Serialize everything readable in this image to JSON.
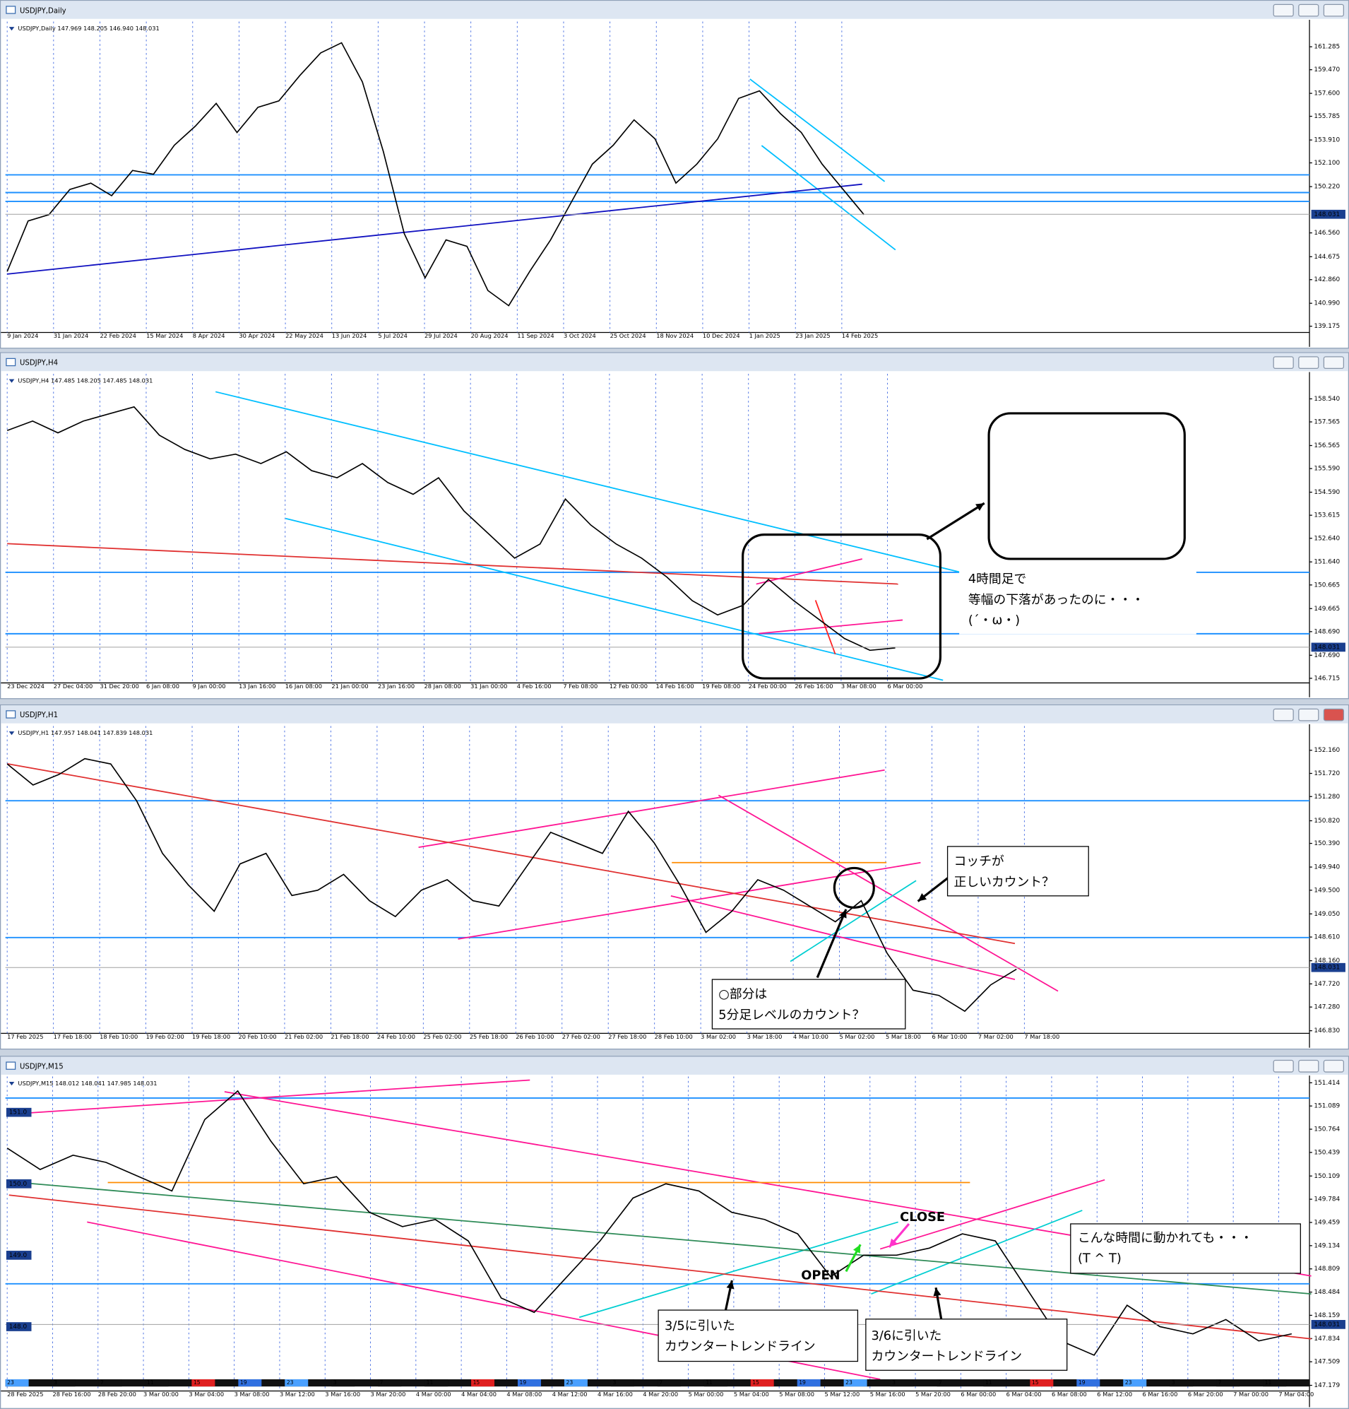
{
  "chart_data": [
    {
      "type": "line",
      "window_title": "USDJPY,Daily",
      "header": "USDJPY,Daily  147.969 148.205 146.940 148.031",
      "color": "#000000",
      "ylim": [
        138.68,
        163.28
      ],
      "yticks": [
        161.285,
        {
          "value": 159.47,
          "label": "159.470"
        },
        {
          "value": 157.6,
          "label": "157.600"
        },
        155.785,
        {
          "value": 153.91,
          "label": "153.910"
        },
        {
          "value": 152.1,
          "label": "152.100"
        },
        {
          "value": 150.22,
          "label": "150.220"
        },
        {
          "value": 146.56,
          "label": "146.560"
        },
        144.675,
        {
          "value": 142.86,
          "label": "142.860"
        },
        {
          "value": 140.99,
          "label": "140.990"
        },
        139.175
      ],
      "last_price": 148.031,
      "levels": [
        151.15,
        149.75,
        149.05
      ],
      "level_color": "#1e90ff",
      "date_labels": [
        "9 Jan 2024",
        "31 Jan 2024",
        "22 Feb 2024",
        "15 Mar 2024",
        "8 Apr 2024",
        "30 Apr 2024",
        "22 May 2024",
        "13 Jun 2024",
        "5 Jul 2024",
        "29 Jul 2024",
        "20 Aug 2024",
        "11 Sep 2024",
        "3 Oct 2024",
        "25 Oct 2024",
        "18 Nov 2024",
        "10 Dec 2024",
        "1 Jan 2025",
        "23 Jan 2025",
        "14 Feb 2025"
      ],
      "values": [
        143.5,
        147.5,
        148.0,
        150.0,
        150.5,
        149.5,
        151.5,
        151.2,
        153.5,
        155.0,
        156.8,
        154.5,
        156.5,
        157.0,
        159.0,
        160.8,
        161.6,
        158.5,
        153.0,
        146.5,
        143.0,
        146.0,
        145.5,
        142.0,
        140.8,
        143.5,
        146.0,
        149.0,
        152.0,
        153.5,
        155.5,
        154.0,
        150.5,
        152.0,
        154.0,
        157.2,
        157.8,
        156.0,
        154.5,
        152.0,
        150.0,
        148.0
      ],
      "annotations": []
    },
    {
      "type": "line",
      "window_title": "USDJPY,H4",
      "header": "USDJPY,H4  147.485 148.205 147.485 148.031",
      "color": "#000000",
      "ylim": [
        146.52,
        159.6
      ],
      "yticks": [
        {
          "value": 158.54,
          "label": "158.540"
        },
        157.565,
        156.565,
        {
          "value": 155.59,
          "label": "155.590"
        },
        {
          "value": 154.59,
          "label": "154.590"
        },
        153.615,
        {
          "value": 152.64,
          "label": "152.640"
        },
        {
          "value": 151.64,
          "label": "151.640"
        },
        150.665,
        149.665,
        {
          "value": 148.69,
          "label": "148.690"
        },
        {
          "value": 147.69,
          "label": "147.690"
        },
        146.715
      ],
      "last_price": 148.031,
      "levels": [
        151.2,
        148.6
      ],
      "level_color": "#1e90ff",
      "date_labels": [
        "23 Dec 2024",
        "27 Dec 04:00",
        "31 Dec 20:00",
        "6 Jan 08:00",
        "9 Jan 00:00",
        "13 Jan 16:00",
        "16 Jan 08:00",
        "21 Jan 00:00",
        "23 Jan 16:00",
        "28 Jan 08:00",
        "31 Jan 00:00",
        "4 Feb 16:00",
        "7 Feb 08:00",
        "12 Feb 00:00",
        "14 Feb 16:00",
        "19 Feb 08:00",
        "24 Feb 00:00",
        "26 Feb 16:00",
        "3 Mar 08:00",
        "6 Mar 00:00"
      ],
      "values": [
        157.2,
        157.6,
        157.1,
        157.6,
        157.9,
        158.2,
        157.0,
        156.4,
        156.0,
        156.2,
        155.8,
        156.3,
        155.5,
        155.2,
        155.8,
        155.0,
        154.5,
        155.2,
        153.8,
        152.8,
        151.8,
        152.4,
        154.3,
        153.2,
        152.4,
        151.8,
        151.0,
        150.0,
        149.4,
        149.8,
        150.9,
        150.0,
        149.2,
        148.4,
        147.9,
        148.0
      ],
      "annotations": [
        {
          "lines": [
            "4時間足で",
            "等幅の下落があったのに・・・",
            "(´・ω・)"
          ]
        }
      ]
    },
    {
      "type": "line",
      "window_title": "USDJPY,H1",
      "header": "USDJPY,H1  147.957 148.041 147.839 148.031",
      "color": "#000000",
      "ylim": [
        146.78,
        152.62
      ],
      "yticks": [
        {
          "value": 152.16,
          "label": "152.160"
        },
        {
          "value": 151.72,
          "label": "151.720"
        },
        {
          "value": 151.28,
          "label": "151.280"
        },
        {
          "value": 150.82,
          "label": "150.820"
        },
        {
          "value": 150.39,
          "label": "150.390"
        },
        {
          "value": 149.94,
          "label": "149.940"
        },
        {
          "value": 149.5,
          "label": "149.500"
        },
        {
          "value": 149.05,
          "label": "149.050"
        },
        {
          "value": 148.61,
          "label": "148.610"
        },
        {
          "value": 148.16,
          "label": "148.160"
        },
        {
          "value": 147.72,
          "label": "147.720"
        },
        {
          "value": 147.28,
          "label": "147.280"
        },
        {
          "value": 146.83,
          "label": "146.830"
        }
      ],
      "last_price": 148.031,
      "levels": [
        151.2,
        148.6
      ],
      "level_color": "#1e90ff",
      "date_labels": [
        "17 Feb 2025",
        "17 Feb 18:00",
        "18 Feb 10:00",
        "19 Feb 02:00",
        "19 Feb 18:00",
        "20 Feb 10:00",
        "21 Feb 02:00",
        "21 Feb 18:00",
        "24 Feb 10:00",
        "25 Feb 02:00",
        "25 Feb 18:00",
        "26 Feb 10:00",
        "27 Feb 02:00",
        "27 Feb 18:00",
        "28 Feb 10:00",
        "3 Mar 02:00",
        "3 Mar 18:00",
        "4 Mar 10:00",
        "5 Mar 02:00",
        "5 Mar 18:00",
        "6 Mar 10:00",
        "7 Mar 02:00",
        "7 Mar 18:00"
      ],
      "values": [
        151.9,
        151.5,
        151.7,
        152.0,
        151.9,
        151.2,
        150.2,
        149.6,
        149.1,
        150.0,
        150.2,
        149.4,
        149.5,
        149.8,
        149.3,
        149.0,
        149.5,
        149.7,
        149.3,
        149.2,
        149.9,
        150.6,
        150.4,
        150.2,
        151.0,
        150.4,
        149.6,
        148.7,
        149.1,
        149.7,
        149.5,
        149.2,
        148.9,
        149.3,
        148.3,
        147.6,
        147.5,
        147.2,
        147.7,
        148.0
      ],
      "annotations": [
        {
          "lines": [
            "コッチが",
            "正しいカウント？"
          ]
        },
        {
          "lines": [
            "○部分は",
            "5分足レベルのカウント？"
          ]
        }
      ]
    },
    {
      "type": "line",
      "window_title": "USDJPY,M15",
      "header": "USDJPY,M15  148.012 148.041 147.985 148.031",
      "color": "#000000",
      "ylim": [
        147.1,
        151.502
      ],
      "yticks": [
        151.414,
        151.089,
        150.764,
        150.439,
        150.109,
        149.784,
        149.459,
        149.134,
        148.809,
        148.484,
        148.159,
        147.834,
        147.509,
        147.179
      ],
      "last_price": 148.031,
      "levels": [
        151.2,
        148.6
      ],
      "level_color": "#1e90ff",
      "left_labels": [
        {
          "value": 151,
          "label": "151.0"
        },
        {
          "value": 150,
          "label": "150.0"
        },
        {
          "value": 149,
          "label": "149.0"
        },
        {
          "value": 148,
          "label": "148.0"
        }
      ],
      "session_labels": [
        "23",
        "3",
        "7",
        "11",
        "15",
        "19",
        "23",
        "3",
        "7",
        "11",
        "15",
        "19",
        "23",
        "3",
        "7",
        "11",
        "15",
        "19",
        "23",
        "3",
        "7",
        "11",
        "15",
        "19",
        "23",
        "3",
        "7",
        "11"
      ],
      "date_labels": [
        "28 Feb 2025",
        "28 Feb 16:00",
        "28 Feb 20:00",
        "3 Mar 00:00",
        "3 Mar 04:00",
        "3 Mar 08:00",
        "3 Mar 12:00",
        "3 Mar 16:00",
        "3 Mar 20:00",
        "4 Mar 00:00",
        "4 Mar 04:00",
        "4 Mar 08:00",
        "4 Mar 12:00",
        "4 Mar 16:00",
        "4 Mar 20:00",
        "5 Mar 00:00",
        "5 Mar 04:00",
        "5 Mar 08:00",
        "5 Mar 12:00",
        "5 Mar 16:00",
        "5 Mar 20:00",
        "6 Mar 00:00",
        "6 Mar 04:00",
        "6 Mar 08:00",
        "6 Mar 12:00",
        "6 Mar 16:00",
        "6 Mar 20:00",
        "7 Mar 00:00",
        "7 Mar 04:00"
      ],
      "values": [
        150.5,
        150.2,
        150.4,
        150.3,
        150.1,
        149.9,
        150.9,
        151.3,
        150.6,
        150.0,
        150.1,
        149.6,
        149.4,
        149.5,
        149.2,
        148.4,
        148.2,
        148.7,
        149.2,
        149.8,
        150.0,
        149.9,
        149.6,
        149.5,
        149.3,
        148.7,
        149.0,
        149.0,
        149.1,
        149.3,
        149.2,
        148.5,
        147.8,
        147.6,
        148.3,
        148.0,
        147.9,
        148.1,
        147.8,
        147.9
      ],
      "annotations": [
        {
          "lines": [
            "CLOSE"
          ]
        },
        {
          "lines": [
            "OPEN"
          ]
        },
        {
          "lines": [
            "こんな時間に動かれても・・・",
            "(T ^ T)"
          ]
        },
        {
          "lines": [
            "3/5に引いた",
            "カウンタートレンドライン"
          ]
        },
        {
          "lines": [
            "3/6に引いた",
            "カウンタートレンドライン"
          ]
        }
      ]
    }
  ]
}
